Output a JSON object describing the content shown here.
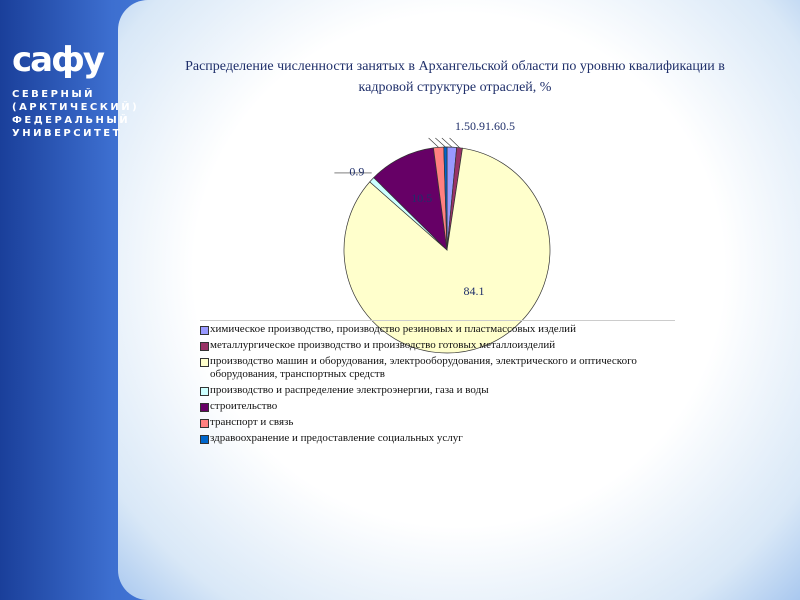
{
  "logo": {
    "mark": "сафу",
    "lines": [
      "СЕВЕРНЫЙ",
      "(АРКТИЧЕСКИЙ)",
      "ФЕДЕРАЛЬНЫЙ",
      "УНИВЕРСИТЕТ"
    ]
  },
  "chart_data": {
    "type": "pie",
    "title": "Распределение численности занятых в Архангельской области по уровню квалификации в кадровой структуре отраслей, %",
    "legend": "bottom",
    "series": [
      {
        "name": "химическое производство, производство резиновых и пластмассовых изделий",
        "color": "#9999ff",
        "values": [
          1.5
        ]
      },
      {
        "name": "металлургическое производство и производство готовых металлоизделий",
        "color": "#993366",
        "values": [
          0.9
        ]
      },
      {
        "name": "производство машин и оборудования, электрооборудования, электрического и оптического оборудования, транспортных средств",
        "color": "#ffffcc",
        "values": [
          84.1
        ]
      },
      {
        "name": "производство и распределение электроэнергии, газа и воды",
        "color": "#ccffff",
        "values": [
          0.9
        ]
      },
      {
        "name": "строительство",
        "color": "#660066",
        "values": [
          10.5
        ]
      },
      {
        "name": "транспорт и связь",
        "color": "#ff8080",
        "values": [
          1.6
        ]
      },
      {
        "name": "здравоохранение и предоставление социальных услуг",
        "color": "#0066cc",
        "values": [
          0.5
        ]
      }
    ]
  }
}
